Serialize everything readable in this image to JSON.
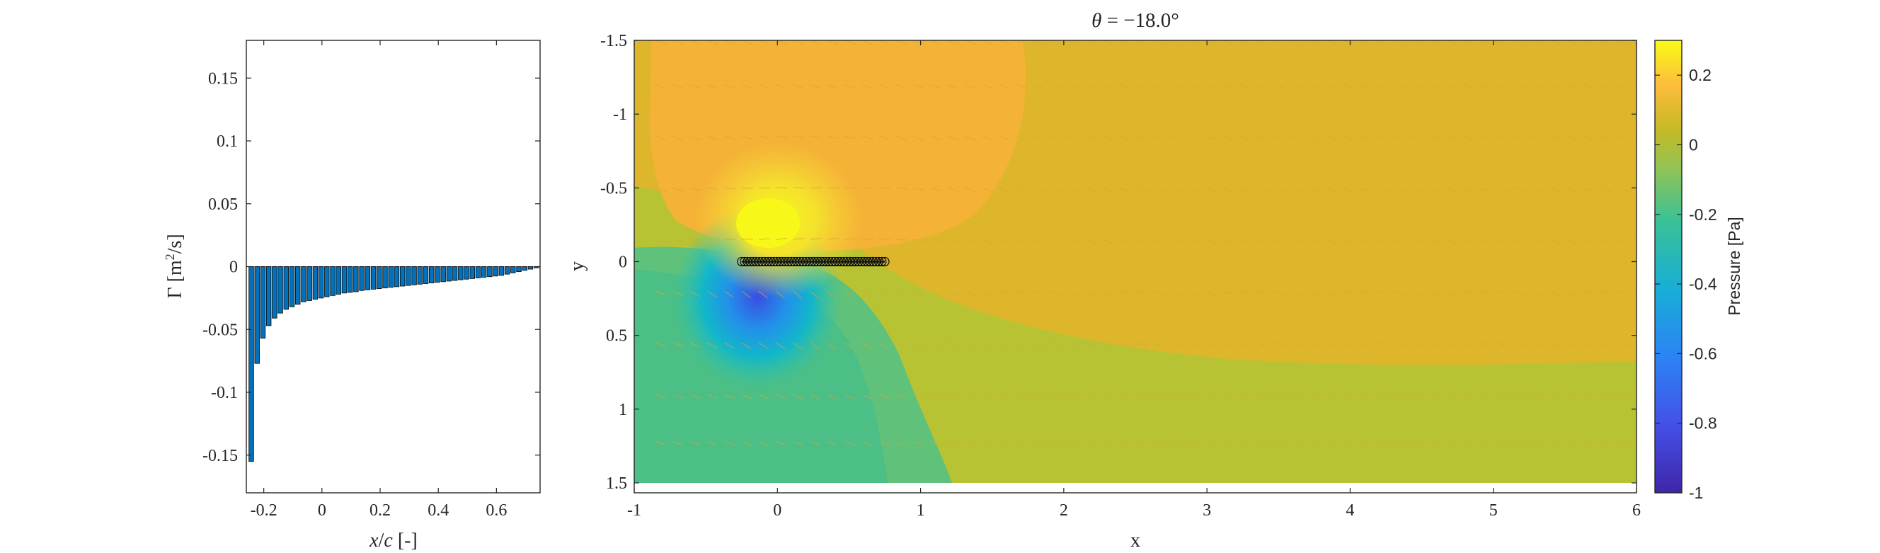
{
  "chart_data": [
    {
      "type": "bar",
      "title": "",
      "xlabel": "x/c [-]",
      "ylabel": "Γ [m²/s]",
      "xlim": [
        -0.26,
        0.75
      ],
      "ylim": [
        -0.18,
        0.18
      ],
      "xticks": [
        "-0.2",
        "0",
        "0.2",
        "0.4",
        "0.6"
      ],
      "xtick_values": [
        -0.2,
        0,
        0.2,
        0.4,
        0.6
      ],
      "yticks": [
        "0.15",
        "0.1",
        "0.05",
        "0",
        "-0.05",
        "-0.1",
        "-0.15"
      ],
      "ytick_values": [
        0.15,
        0.1,
        0.05,
        0,
        -0.05,
        -0.1,
        -0.15
      ],
      "grid": false,
      "bar_color": "#0072BD",
      "x": [
        -0.243,
        -0.223,
        -0.203,
        -0.183,
        -0.163,
        -0.143,
        -0.123,
        -0.103,
        -0.083,
        -0.063,
        -0.043,
        -0.023,
        -0.003,
        0.017,
        0.037,
        0.057,
        0.077,
        0.097,
        0.117,
        0.137,
        0.157,
        0.177,
        0.197,
        0.217,
        0.237,
        0.257,
        0.277,
        0.297,
        0.317,
        0.337,
        0.357,
        0.377,
        0.397,
        0.417,
        0.437,
        0.457,
        0.477,
        0.497,
        0.517,
        0.537,
        0.557,
        0.577,
        0.597,
        0.617,
        0.637,
        0.657,
        0.677,
        0.697,
        0.717,
        0.737
      ],
      "values": [
        -0.155,
        -0.077,
        -0.057,
        -0.047,
        -0.041,
        -0.037,
        -0.034,
        -0.032,
        -0.03,
        -0.028,
        -0.027,
        -0.026,
        -0.025,
        -0.024,
        -0.023,
        -0.022,
        -0.021,
        -0.0205,
        -0.02,
        -0.019,
        -0.0185,
        -0.018,
        -0.0175,
        -0.017,
        -0.0165,
        -0.016,
        -0.0155,
        -0.015,
        -0.0145,
        -0.014,
        -0.0135,
        -0.013,
        -0.0125,
        -0.012,
        -0.0115,
        -0.011,
        -0.0105,
        -0.01,
        -0.0095,
        -0.009,
        -0.0085,
        -0.008,
        -0.0075,
        -0.007,
        -0.006,
        -0.005,
        -0.004,
        -0.003,
        -0.002,
        -0.001
      ]
    },
    {
      "type": "heatmap",
      "title": "θ = −18.0°",
      "xlabel": "x",
      "ylabel": "y",
      "xlim": [
        -1,
        6
      ],
      "ylim": [
        -1.5,
        1.5
      ],
      "y_reversed": true,
      "xticks": [
        "-1",
        "0",
        "1",
        "2",
        "3",
        "4",
        "5",
        "6"
      ],
      "xtick_values": [
        -1,
        0,
        1,
        2,
        3,
        4,
        5,
        6
      ],
      "yticks": [
        "-1.5",
        "-1",
        "-0.5",
        "0",
        "0.5",
        "1",
        "1.5"
      ],
      "ytick_values": [
        -1.5,
        -1,
        -0.5,
        0,
        0.5,
        1,
        1.5
      ],
      "colorbar": {
        "label": "Pressure [Pa]",
        "range": [
          -1,
          0.3
        ],
        "ticks": [
          "0.2",
          "0",
          "-0.2",
          "-0.4",
          "-0.6",
          "-0.8",
          "-1"
        ],
        "tick_values": [
          0.2,
          0,
          -0.2,
          -0.4,
          -0.6,
          -0.8,
          -1
        ],
        "colormap": "parula"
      },
      "plate": {
        "x": [
          -0.25,
          0.75
        ],
        "y": 0,
        "marker_count": 50
      },
      "arrow_color": "#D9A635"
    }
  ]
}
